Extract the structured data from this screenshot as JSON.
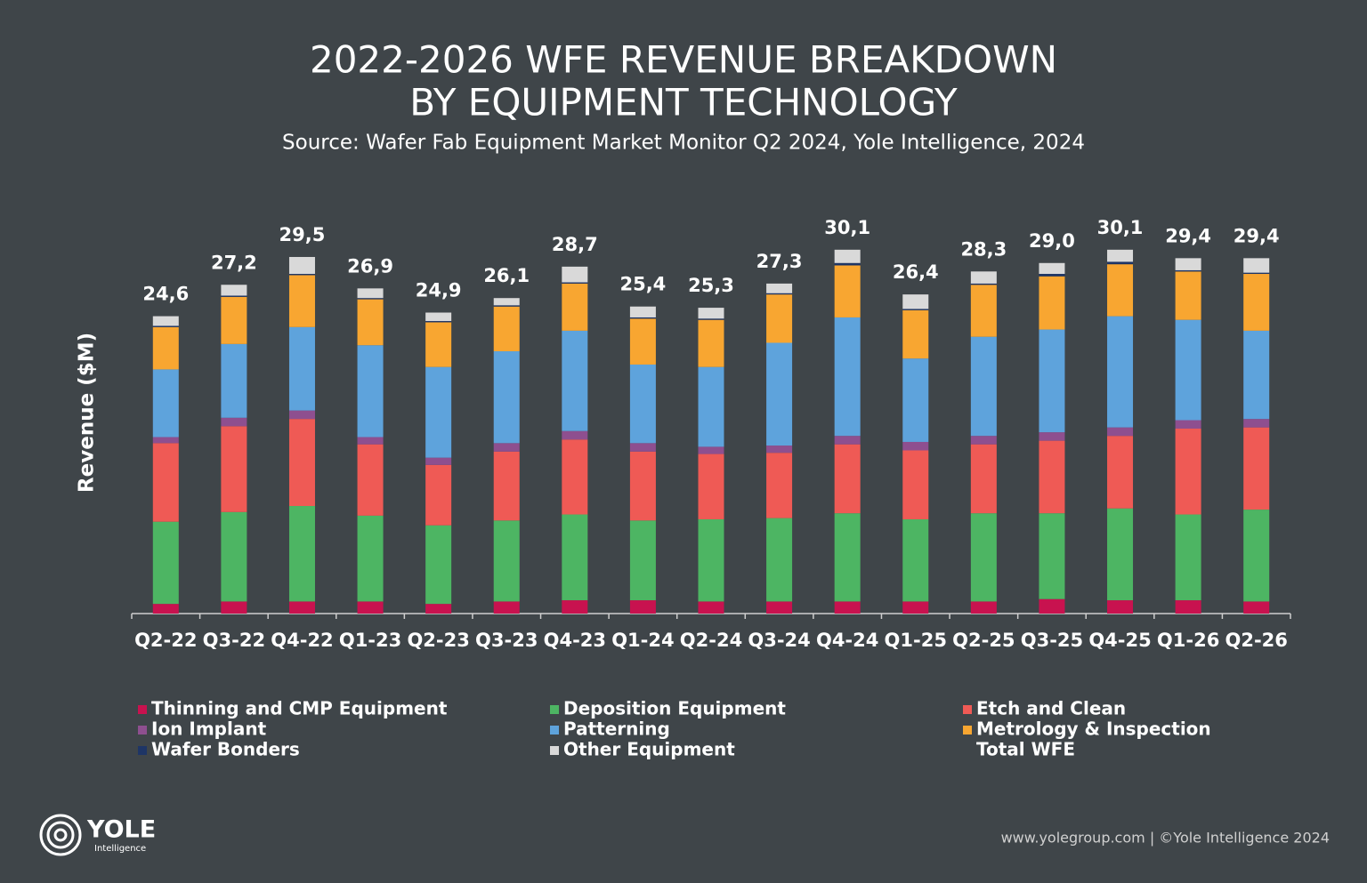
{
  "chart_data": {
    "type": "stacked_bar",
    "title": [
      "2022-2026 WFE REVENUE BREAKDOWN",
      "BY EQUIPMENT TECHNOLOGY"
    ],
    "subtitle": "Source: Wafer Fab Equipment Market Monitor Q2 2024, Yole Intelligence, 2024",
    "y_label": "Revenue ($M)",
    "categories": [
      "Q2-22",
      "Q3-22",
      "Q4-22",
      "Q1-23",
      "Q2-23",
      "Q3-23",
      "Q4-23",
      "Q1-24",
      "Q2-24",
      "Q3-24",
      "Q4-24",
      "Q1-25",
      "Q2-25",
      "Q3-25",
      "Q4-25",
      "Q1-26",
      "Q2-26"
    ],
    "ylim": [
      0,
      32
    ],
    "series": [
      {
        "name": "Thinning and CMP Equipment",
        "color": "#c8124f",
        "values": [
          0.8,
          1.0,
          1.0,
          1.0,
          0.8,
          1.0,
          1.1,
          1.1,
          1.0,
          1.0,
          1.0,
          1.0,
          1.0,
          1.2,
          1.1,
          1.1,
          1.0
        ]
      },
      {
        "name": "Deposition Equipment",
        "color": "#4db563",
        "values": [
          6.8,
          7.4,
          7.9,
          7.1,
          6.5,
          6.7,
          7.1,
          6.6,
          6.8,
          6.9,
          7.3,
          6.8,
          7.3,
          7.1,
          7.6,
          7.1,
          7.6
        ]
      },
      {
        "name": "Etch and Clean",
        "color": "#ef5a55",
        "values": [
          6.5,
          7.1,
          7.2,
          5.9,
          5.0,
          5.7,
          6.2,
          5.7,
          5.4,
          5.4,
          5.7,
          5.7,
          5.7,
          6.0,
          6.0,
          7.1,
          6.8
        ]
      },
      {
        "name": "Ion Implant",
        "color": "#8e4f8f",
        "values": [
          0.5,
          0.7,
          0.7,
          0.6,
          0.6,
          0.7,
          0.7,
          0.7,
          0.6,
          0.6,
          0.7,
          0.7,
          0.7,
          0.7,
          0.7,
          0.7,
          0.7
        ]
      },
      {
        "name": "Patterning",
        "color": "#5ea3dc",
        "values": [
          5.6,
          6.1,
          6.9,
          7.6,
          7.5,
          7.6,
          8.3,
          6.5,
          6.6,
          8.5,
          9.8,
          6.9,
          8.2,
          8.5,
          9.2,
          8.3,
          7.3
        ]
      },
      {
        "name": "Metrology & Inspection",
        "color": "#f8a631",
        "values": [
          3.5,
          3.9,
          4.3,
          3.8,
          3.7,
          3.7,
          3.9,
          3.8,
          3.9,
          4.0,
          4.3,
          4.0,
          4.3,
          4.4,
          4.3,
          4.0,
          4.7
        ]
      },
      {
        "name": "Wafer Bonders",
        "color": "#1e3566",
        "values": [
          0.1,
          0.1,
          0.1,
          0.1,
          0.1,
          0.1,
          0.1,
          0.1,
          0.1,
          0.1,
          0.2,
          0.1,
          0.1,
          0.2,
          0.2,
          0.1,
          0.1
        ]
      },
      {
        "name": "Other Equipment",
        "color": "#d9d9d9",
        "values": [
          0.8,
          0.9,
          1.4,
          0.8,
          0.7,
          0.6,
          1.3,
          0.9,
          0.9,
          0.8,
          1.1,
          1.2,
          1.0,
          0.9,
          1.0,
          1.0,
          1.2
        ]
      }
    ],
    "total": {
      "name": "Total WFE",
      "values": [
        24.6,
        27.2,
        29.5,
        26.9,
        24.9,
        26.1,
        28.7,
        25.4,
        25.3,
        27.3,
        30.1,
        26.4,
        28.3,
        29.0,
        30.1,
        29.4,
        29.4
      ],
      "value_labels": [
        "24,6",
        "27,2",
        "29,5",
        "26,9",
        "24,9",
        "26,1",
        "28,7",
        "25,4",
        "25,3",
        "27,3",
        "30,1",
        "26,4",
        "28,3",
        "29,0",
        "30,1",
        "29,4",
        "29,4"
      ]
    }
  },
  "logo": {
    "name": "YOLE",
    "sub": "Intelligence"
  },
  "footer": "www.yolegroup.com | ©Yole Intelligence 2024"
}
